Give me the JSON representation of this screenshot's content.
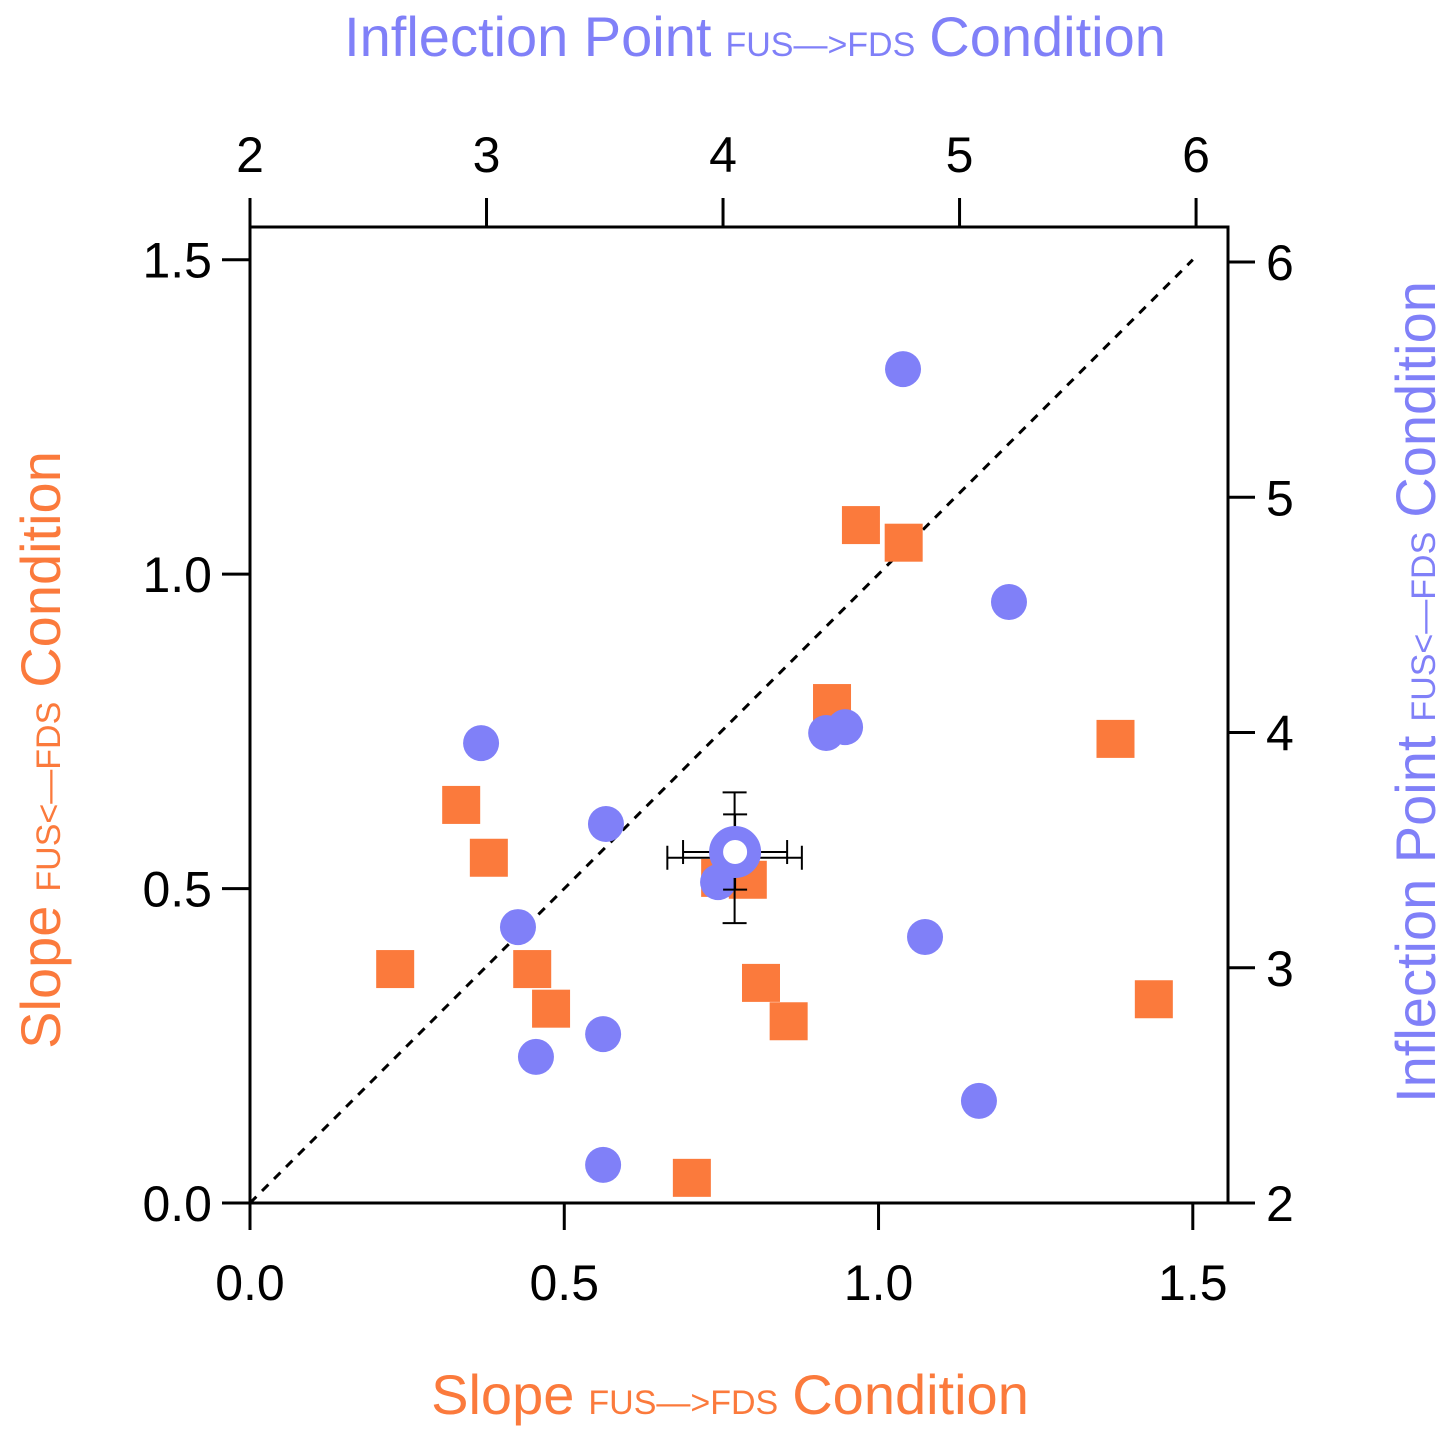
{
  "chart_data": {
    "type": "scatter",
    "xlabel": [
      "Slope",
      "FUS—>FDS",
      "Condition"
    ],
    "ylabel": [
      "Slope",
      "FUS<—FDS",
      "Condition"
    ],
    "x2label": [
      "Inflection Point",
      "FUS—>FDS",
      "Condition"
    ],
    "y2label": [
      "Inflection Point",
      "FUS<—FDS",
      "Condition"
    ],
    "xlim": [
      0,
      1.556
    ],
    "ylim": [
      0,
      1.552
    ],
    "x2lim": [
      2,
      6.135
    ],
    "y2lim": [
      2,
      6.149
    ],
    "xticks": [
      {
        "value": 0,
        "label": "0.0"
      },
      {
        "value": 0.5,
        "label": "0.5"
      },
      {
        "value": 1,
        "label": "1.0"
      },
      {
        "value": 1.5,
        "label": "1.5"
      }
    ],
    "yticks": [
      {
        "value": 0,
        "label": "0.0"
      },
      {
        "value": 0.5,
        "label": "0.5"
      },
      {
        "value": 1,
        "label": "1.0"
      },
      {
        "value": 1.5,
        "label": "1.5"
      }
    ],
    "x2ticks": [
      2,
      3,
      4,
      5,
      6
    ],
    "y2ticks": [
      2,
      3,
      4,
      5,
      6
    ],
    "identity_line": [
      0,
      1.5
    ],
    "series": [
      {
        "marker": "square",
        "color": "#fb7a3c",
        "x": [
          0.231,
          0.336,
          0.38,
          0.449,
          0.479,
          0.703,
          0.813,
          0.857,
          0.926,
          0.972,
          1.04,
          1.377,
          1.438,
          0.748,
          0.792
        ],
        "values": [
          0.372,
          0.633,
          0.549,
          0.372,
          0.309,
          0.04,
          0.35,
          0.289,
          0.795,
          1.078,
          1.05,
          0.738,
          0.324,
          0.517,
          0.514
        ],
        "mean": {
          "x": 0.771,
          "y": 0.549,
          "xerr": 0.107,
          "yerr": 0.104
        }
      },
      {
        "marker": "circle",
        "color": "#8080f8",
        "axis": "y2",
        "x": [
          4.761,
          5.209,
          4.516,
          4.436,
          2.977,
          3.505,
          3.133,
          4.854,
          3.209,
          3.493,
          3.493,
          5.082,
          3.979
        ],
        "values": [
          5.545,
          4.555,
          4.023,
          3.998,
          3.955,
          3.611,
          3.173,
          3.131,
          2.621,
          2.718,
          2.162,
          2.434,
          3.364
        ],
        "mean": {
          "x": 4.051,
          "y": 3.492,
          "xerr": 0.22,
          "yerr": 0.16
        }
      }
    ]
  }
}
